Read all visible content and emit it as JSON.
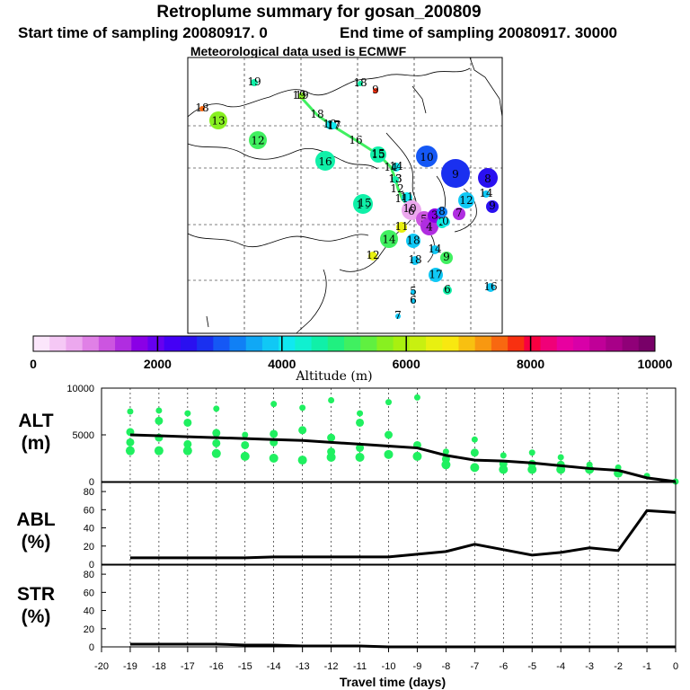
{
  "title": "Retroplume summary for gosan_200809",
  "subtitle_left": "Start time of sampling 20080917.    0",
  "subtitle_right": "End time of sampling 20080917. 30000",
  "subtitle_met": "Meteorological data used is ECMWF",
  "colorbar": {
    "label": "Altitude (m)",
    "ticks": [
      "0",
      "2000",
      "4000",
      "6000",
      "8000",
      "10000"
    ],
    "colors": [
      "#fbe6fb",
      "#f5c8f5",
      "#eca8ee",
      "#e080e6",
      "#cc55e0",
      "#b02de0",
      "#8a00e6",
      "#6600f0",
      "#4400f5",
      "#2a10f0",
      "#1a30f0",
      "#1558f5",
      "#1080f5",
      "#10a8f5",
      "#10c8f5",
      "#10e8f0",
      "#10f0d0",
      "#10f0a8",
      "#20f080",
      "#40f060",
      "#60f040",
      "#88f020",
      "#a8f010",
      "#c8f010",
      "#e8f010",
      "#f8e810",
      "#f8c010",
      "#f89810",
      "#f86810",
      "#f83010",
      "#f80040",
      "#f00078",
      "#e800a0",
      "#d800a8",
      "#c00098",
      "#a80088",
      "#900078",
      "#780068"
    ]
  },
  "map": {
    "numbers": [
      {
        "n": "19",
        "c": "#10f0a8"
      },
      {
        "n": "18",
        "c": "#10f0a8"
      },
      {
        "n": "9",
        "c": "#f83010"
      },
      {
        "n": "19",
        "c": "#88f020"
      },
      {
        "n": "18",
        "c": "#f86810"
      },
      {
        "n": "13",
        "c": "#88f020"
      },
      {
        "n": "12",
        "c": "#40f060"
      },
      {
        "n": "18",
        "c": "#10e8f0"
      },
      {
        "n": "17",
        "c": "#10e8f0"
      },
      {
        "n": "16",
        "c": "#10f0a8"
      },
      {
        "n": "16",
        "c": "#10f0a8"
      },
      {
        "n": "15",
        "c": "#10f0a8"
      },
      {
        "n": "10",
        "c": "#1558f5"
      },
      {
        "n": "9",
        "c": "#1a30f0"
      },
      {
        "n": "8",
        "c": "#2a10f0"
      },
      {
        "n": "14",
        "c": "#10e8f0"
      },
      {
        "n": "15",
        "c": "#10f0a8"
      },
      {
        "n": "13",
        "c": "#10f0a8"
      },
      {
        "n": "12",
        "c": "#10c8f5"
      },
      {
        "n": "11",
        "c": "#10e8f0"
      },
      {
        "n": "14",
        "c": "#10c8f5"
      },
      {
        "n": "9",
        "c": "#2a10f0"
      },
      {
        "n": "6",
        "c": "#eca8ee"
      },
      {
        "n": "5",
        "c": "#cc55e0"
      },
      {
        "n": "4",
        "c": "#b02de0"
      },
      {
        "n": "3",
        "c": "#8a00e6"
      },
      {
        "n": "2",
        "c": "#10f0d0"
      },
      {
        "n": "7",
        "c": "#b02de0"
      },
      {
        "n": "8",
        "c": "#1080f5"
      },
      {
        "n": "0",
        "c": "#10e8f0"
      },
      {
        "n": "11",
        "c": "#e8f010"
      },
      {
        "n": "14",
        "c": "#40f060"
      },
      {
        "n": "18",
        "c": "#10c8f5"
      },
      {
        "n": "12",
        "c": "#e8f010"
      },
      {
        "n": "18",
        "c": "#10c8f5"
      },
      {
        "n": "14",
        "c": "#10c8f5"
      },
      {
        "n": "9",
        "c": "#40f060"
      },
      {
        "n": "17",
        "c": "#10c8f5"
      },
      {
        "n": "6",
        "c": "#10f0a8"
      },
      {
        "n": "16",
        "c": "#10c8f5"
      },
      {
        "n": "5",
        "c": "#10c8f5"
      },
      {
        "n": "6",
        "c": "#10c8f5"
      },
      {
        "n": "7",
        "c": "#10c8f5"
      }
    ],
    "centroid_labels": [
      "19",
      "18",
      "17",
      "16",
      "15",
      "14",
      "13",
      "12",
      "11",
      "10"
    ]
  },
  "chart_data": [
    {
      "type": "scatter",
      "panel": "ALT",
      "ylabel_lines": [
        "ALT",
        "(m)"
      ],
      "ylim": [
        0,
        10000
      ],
      "yticks": [
        "10000",
        "5000",
        "0"
      ],
      "mean_line": {
        "x": [
          -19,
          -18,
          -17,
          -16,
          -15,
          -14,
          -13,
          -12,
          -11,
          -10,
          -9,
          -8,
          -7,
          -6,
          -5,
          -4,
          -3,
          -2,
          -1,
          0
        ],
        "y": [
          5000,
          4900,
          4800,
          4700,
          4600,
          4500,
          4400,
          4200,
          4000,
          3800,
          3600,
          2800,
          2300,
          2200,
          2000,
          1700,
          1400,
          1200,
          400,
          0
        ]
      },
      "clusters": [
        {
          "x": -19,
          "y": [
            7500,
            5300,
            4200,
            3300
          ]
        },
        {
          "x": -18,
          "y": [
            7600,
            6500,
            4700,
            3300
          ]
        },
        {
          "x": -17,
          "y": [
            7300,
            6300,
            4000,
            3300
          ]
        },
        {
          "x": -16,
          "y": [
            7800,
            5200,
            4100,
            3000
          ]
        },
        {
          "x": -15,
          "y": [
            5000,
            3900,
            2700
          ]
        },
        {
          "x": -14,
          "y": [
            8300,
            5100,
            4200,
            2500
          ]
        },
        {
          "x": -13,
          "y": [
            7900,
            5500,
            2300
          ]
        },
        {
          "x": -12,
          "y": [
            8700,
            4700,
            3200,
            2600
          ]
        },
        {
          "x": -11,
          "y": [
            7300,
            6300,
            3600,
            2600
          ]
        },
        {
          "x": -10,
          "y": [
            8500,
            5000,
            2900
          ]
        },
        {
          "x": -9,
          "y": [
            9000,
            3900,
            2700
          ]
        },
        {
          "x": -8,
          "y": [
            3200,
            2400,
            1800
          ]
        },
        {
          "x": -7,
          "y": [
            4500,
            3100,
            1500
          ]
        },
        {
          "x": -6,
          "y": [
            2800,
            1900,
            1300
          ]
        },
        {
          "x": -5,
          "y": [
            3100,
            1900,
            1300
          ]
        },
        {
          "x": -4,
          "y": [
            2600,
            1800,
            1300
          ]
        },
        {
          "x": -3,
          "y": [
            1800,
            1300
          ]
        },
        {
          "x": -2,
          "y": [
            1500,
            900
          ]
        },
        {
          "x": -1,
          "y": [
            600
          ]
        },
        {
          "x": 0,
          "y": [
            0
          ]
        }
      ]
    },
    {
      "type": "line",
      "panel": "ABL",
      "ylabel_lines": [
        "ABL",
        "(%)"
      ],
      "ylim": [
        0,
        90
      ],
      "yticks": [
        "80",
        "60",
        "40",
        "20",
        "0"
      ],
      "x": [
        -19,
        -18,
        -17,
        -16,
        -15,
        -14,
        -13,
        -12,
        -11,
        -10,
        -9,
        -8,
        -7,
        -6,
        -5,
        -4,
        -3,
        -2,
        -1,
        0
      ],
      "values": [
        7,
        7,
        7,
        7,
        7,
        8,
        8,
        8,
        8,
        8,
        11,
        14,
        22,
        16,
        10,
        13,
        18,
        15,
        59,
        57
      ]
    },
    {
      "type": "line",
      "panel": "STR",
      "ylabel_lines": [
        "STR",
        "(%)"
      ],
      "ylim": [
        0,
        90
      ],
      "yticks": [
        "80",
        "60",
        "40",
        "20",
        "0"
      ],
      "x": [
        -19,
        -18,
        -17,
        -16,
        -15,
        -14,
        -13,
        -12,
        -11,
        -10,
        -9,
        -8,
        -7,
        -6,
        -5,
        -4,
        -3,
        -2,
        -1,
        0
      ],
      "values": [
        3,
        3,
        3,
        3,
        2,
        2,
        1,
        1,
        1,
        0,
        0,
        0,
        0,
        0,
        0,
        0,
        0,
        0,
        0,
        0
      ]
    }
  ],
  "x_axis": {
    "title": "Travel time (days)",
    "ticks": [
      "-20",
      "-19",
      "-18",
      "-17",
      "-16",
      "-15",
      "-14",
      "-13",
      "-12",
      "-11",
      "-10",
      "-9",
      "-8",
      "-7",
      "-6",
      "-5",
      "-4",
      "-3",
      "-2",
      "-1",
      "0"
    ]
  }
}
